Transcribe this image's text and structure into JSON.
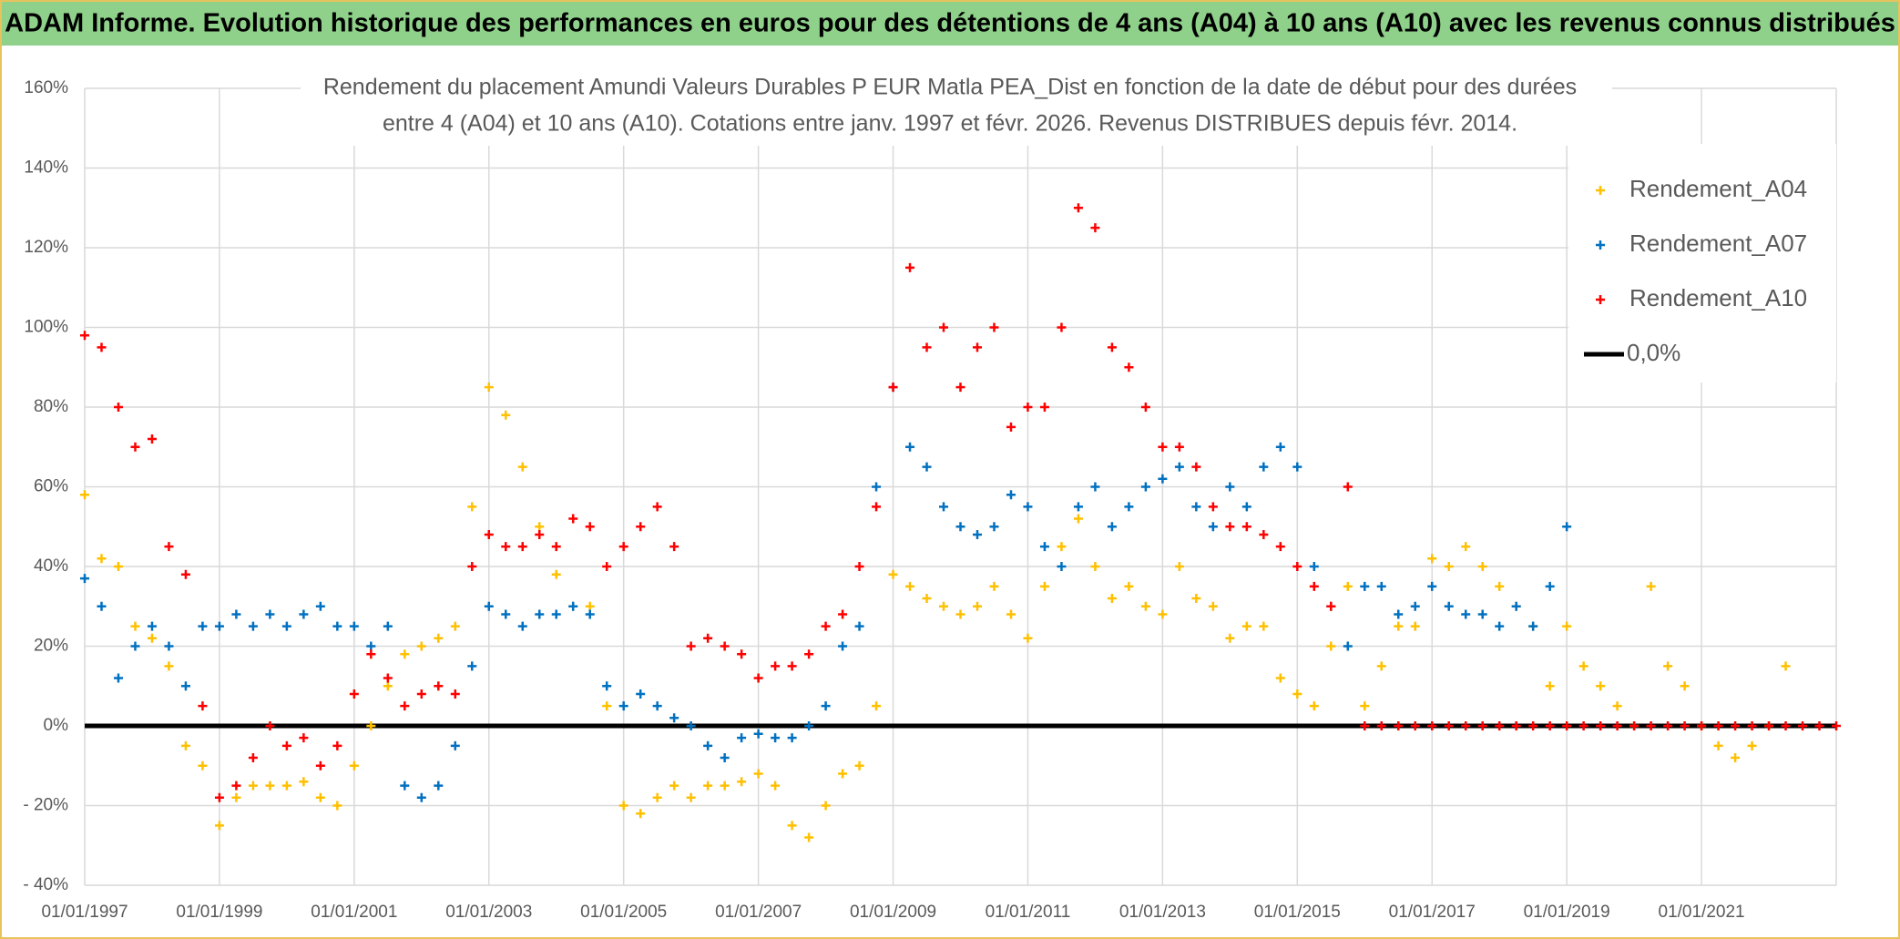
{
  "chart_data": {
    "type": "scatter",
    "title": "ADAM Informe. Evolution historique des performances en euros pour des détentions de 4 ans (A04) à 10 ans (A10) avec les revenus connus distribués",
    "subtitle_lines": [
      "Rendement du placement Amundi Valeurs Durables P EUR Matla PEA_Dist en fonction de la date de début pour des durées",
      "entre 4 (A04) et 10 ans (A10). Cotations entre janv. 1997 et févr. 2026. Revenus DISTRIBUES depuis févr. 2014."
    ],
    "xlim": [
      1997,
      2023
    ],
    "xticks": [
      {
        "value": 1997,
        "label": "01/01/1997"
      },
      {
        "value": 1999,
        "label": "01/01/1999"
      },
      {
        "value": 2001,
        "label": "01/01/2001"
      },
      {
        "value": 2003,
        "label": "01/01/2003"
      },
      {
        "value": 2005,
        "label": "01/01/2005"
      },
      {
        "value": 2007,
        "label": "01/01/2007"
      },
      {
        "value": 2009,
        "label": "01/01/2009"
      },
      {
        "value": 2011,
        "label": "01/01/2011"
      },
      {
        "value": 2013,
        "label": "01/01/2013"
      },
      {
        "value": 2015,
        "label": "01/01/2015"
      },
      {
        "value": 2017,
        "label": "01/01/2017"
      },
      {
        "value": 2019,
        "label": "01/01/2019"
      },
      {
        "value": 2021,
        "label": "01/01/2021"
      }
    ],
    "ylim": [
      -40,
      160
    ],
    "yticks": [
      {
        "value": -40,
        "label": "- 40%"
      },
      {
        "value": -20,
        "label": "- 20%"
      },
      {
        "value": 0,
        "label": "0%"
      },
      {
        "value": 20,
        "label": "20%"
      },
      {
        "value": 40,
        "label": "40%"
      },
      {
        "value": 60,
        "label": "60%"
      },
      {
        "value": 80,
        "label": "80%"
      },
      {
        "value": 100,
        "label": "100%"
      },
      {
        "value": 120,
        "label": "120%"
      },
      {
        "value": 140,
        "label": "140%"
      },
      {
        "value": 160,
        "label": "160%"
      }
    ],
    "grid": true,
    "legend": "upper right",
    "series": [
      {
        "name": "Rendement_A04",
        "color": "#ffc000",
        "mode": "markers",
        "x": [
          1997,
          1997.25,
          1997.5,
          1997.75,
          1998,
          1998.25,
          1998.5,
          1998.75,
          1999,
          1999.25,
          1999.5,
          1999.75,
          2000,
          2000.25,
          2000.5,
          2000.75,
          2001,
          2001.25,
          2001.5,
          2001.75,
          2002,
          2002.25,
          2002.5,
          2002.75,
          2003,
          2003.25,
          2003.5,
          2003.75,
          2004,
          2004.25,
          2004.5,
          2004.75,
          2005,
          2005.25,
          2005.5,
          2005.75,
          2006,
          2006.25,
          2006.5,
          2006.75,
          2007,
          2007.25,
          2007.5,
          2007.75,
          2008,
          2008.25,
          2008.5,
          2008.75,
          2009,
          2009.25,
          2009.5,
          2009.75,
          2010,
          2010.25,
          2010.5,
          2010.75,
          2011,
          2011.25,
          2011.5,
          2011.75,
          2012,
          2012.25,
          2012.5,
          2012.75,
          2013,
          2013.25,
          2013.5,
          2013.75,
          2014,
          2014.25,
          2014.5,
          2014.75,
          2015,
          2015.25,
          2015.5,
          2015.75,
          2016,
          2016.25,
          2016.5,
          2016.75,
          2017,
          2017.25,
          2017.5,
          2017.75,
          2018,
          2018.25,
          2018.5,
          2018.75,
          2019,
          2019.25,
          2019.5,
          2019.75,
          2020,
          2020.25,
          2020.5,
          2020.75,
          2021,
          2021.25,
          2021.5,
          2021.75,
          2022,
          2022.25
        ],
        "values": [
          58,
          42,
          40,
          25,
          22,
          15,
          -5,
          -10,
          -25,
          -18,
          -15,
          -15,
          -15,
          -14,
          -18,
          -20,
          -10,
          0,
          10,
          18,
          20,
          22,
          25,
          55,
          85,
          78,
          65,
          50,
          38,
          30,
          30,
          5,
          -20,
          -22,
          -18,
          -15,
          -18,
          -15,
          -15,
          -14,
          -12,
          -15,
          -25,
          -28,
          -20,
          -12,
          -10,
          5,
          38,
          35,
          32,
          30,
          28,
          30,
          35,
          28,
          22,
          35,
          45,
          52,
          40,
          32,
          35,
          30,
          28,
          40,
          32,
          30,
          22,
          25,
          25,
          12,
          8,
          5,
          20,
          35,
          5,
          15,
          25,
          25,
          42,
          40,
          45,
          40,
          35,
          30,
          25,
          10,
          25,
          15,
          10,
          5,
          0,
          35,
          15,
          10,
          0,
          -5,
          -8,
          -5,
          0,
          15
        ]
      },
      {
        "name": "Rendement_A07",
        "color": "#0070c0",
        "mode": "markers",
        "x": [
          1997,
          1997.25,
          1997.5,
          1997.75,
          1998,
          1998.25,
          1998.5,
          1998.75,
          1999,
          1999.25,
          1999.5,
          1999.75,
          2000,
          2000.25,
          2000.5,
          2000.75,
          2001,
          2001.25,
          2001.5,
          2001.75,
          2002,
          2002.25,
          2002.5,
          2002.75,
          2003,
          2003.25,
          2003.5,
          2003.75,
          2004,
          2004.25,
          2004.5,
          2004.75,
          2005,
          2005.25,
          2005.5,
          2005.75,
          2006,
          2006.25,
          2006.5,
          2006.75,
          2007,
          2007.25,
          2007.5,
          2007.75,
          2008,
          2008.25,
          2008.5,
          2008.75,
          2009,
          2009.25,
          2009.5,
          2009.75,
          2010,
          2010.25,
          2010.5,
          2010.75,
          2011,
          2011.25,
          2011.5,
          2011.75,
          2012,
          2012.25,
          2012.5,
          2012.75,
          2013,
          2013.25,
          2013.5,
          2013.75,
          2014,
          2014.25,
          2014.5,
          2014.75,
          2015,
          2015.25,
          2015.5,
          2015.75,
          2016,
          2016.25,
          2016.5,
          2016.75,
          2017,
          2017.25,
          2017.5,
          2017.75,
          2018,
          2018.25,
          2018.5,
          2018.75,
          2019
        ],
        "values": [
          37,
          30,
          12,
          20,
          25,
          20,
          10,
          25,
          25,
          28,
          25,
          28,
          25,
          28,
          30,
          25,
          25,
          20,
          25,
          -15,
          -18,
          -15,
          -5,
          15,
          30,
          28,
          25,
          28,
          28,
          30,
          28,
          10,
          5,
          8,
          5,
          2,
          0,
          -5,
          -8,
          -3,
          -2,
          -3,
          -3,
          0,
          5,
          20,
          25,
          60,
          85,
          70,
          65,
          55,
          50,
          48,
          50,
          58,
          55,
          45,
          40,
          55,
          60,
          50,
          55,
          60,
          62,
          65,
          55,
          50,
          60,
          55,
          65,
          70,
          65,
          40,
          30,
          20,
          35,
          35,
          28,
          30,
          35,
          30,
          28,
          28,
          25,
          30,
          25,
          35,
          50
        ]
      },
      {
        "name": "Rendement_A10",
        "color": "#ff0000",
        "mode": "markers",
        "x": [
          1997,
          1997.25,
          1997.5,
          1997.75,
          1998,
          1998.25,
          1998.5,
          1998.75,
          1999,
          1999.25,
          1999.5,
          1999.75,
          2000,
          2000.25,
          2000.5,
          2000.75,
          2001,
          2001.25,
          2001.5,
          2001.75,
          2002,
          2002.25,
          2002.5,
          2002.75,
          2003,
          2003.25,
          2003.5,
          2003.75,
          2004,
          2004.25,
          2004.5,
          2004.75,
          2005,
          2005.25,
          2005.5,
          2005.75,
          2006,
          2006.25,
          2006.5,
          2006.75,
          2007,
          2007.25,
          2007.5,
          2007.75,
          2008,
          2008.25,
          2008.5,
          2008.75,
          2009,
          2009.25,
          2009.5,
          2009.75,
          2010,
          2010.25,
          2010.5,
          2010.75,
          2011,
          2011.25,
          2011.5,
          2011.75,
          2012,
          2012.25,
          2012.5,
          2012.75,
          2013,
          2013.25,
          2013.5,
          2013.75,
          2014,
          2014.25,
          2014.5,
          2014.75,
          2015,
          2015.25,
          2015.5,
          2015.75,
          2016,
          2016.25,
          2016.5,
          2016.75,
          2017,
          2017.25,
          2017.5,
          2017.75,
          2018,
          2018.25,
          2018.5,
          2018.75,
          2019,
          2019.25,
          2019.5,
          2019.75,
          2020,
          2020.25,
          2020.5,
          2020.75,
          2021,
          2021.25,
          2021.5,
          2021.75,
          2022,
          2022.25,
          2022.5,
          2022.75,
          2023
        ],
        "values": [
          98,
          95,
          80,
          70,
          72,
          45,
          38,
          5,
          -18,
          -15,
          -8,
          0,
          -5,
          -3,
          -10,
          -5,
          8,
          18,
          12,
          5,
          8,
          10,
          8,
          40,
          48,
          45,
          45,
          48,
          45,
          52,
          50,
          40,
          45,
          50,
          55,
          45,
          20,
          22,
          20,
          18,
          12,
          15,
          15,
          18,
          25,
          28,
          40,
          55,
          85,
          115,
          95,
          100,
          85,
          95,
          100,
          75,
          80,
          80,
          100,
          130,
          125,
          95,
          90,
          80,
          70,
          70,
          65,
          55,
          50,
          50,
          48,
          45,
          40,
          35,
          30,
          60,
          0,
          0,
          0,
          0,
          0,
          0,
          0,
          0,
          0,
          0,
          0,
          0,
          0,
          0,
          0,
          0,
          0,
          0,
          0,
          0,
          0,
          0,
          0,
          0,
          0,
          0,
          0,
          0,
          0
        ]
      },
      {
        "name": "0,0%",
        "color": "#000000",
        "mode": "line",
        "x": [
          1997,
          2023
        ],
        "values": [
          0,
          0
        ]
      }
    ]
  }
}
